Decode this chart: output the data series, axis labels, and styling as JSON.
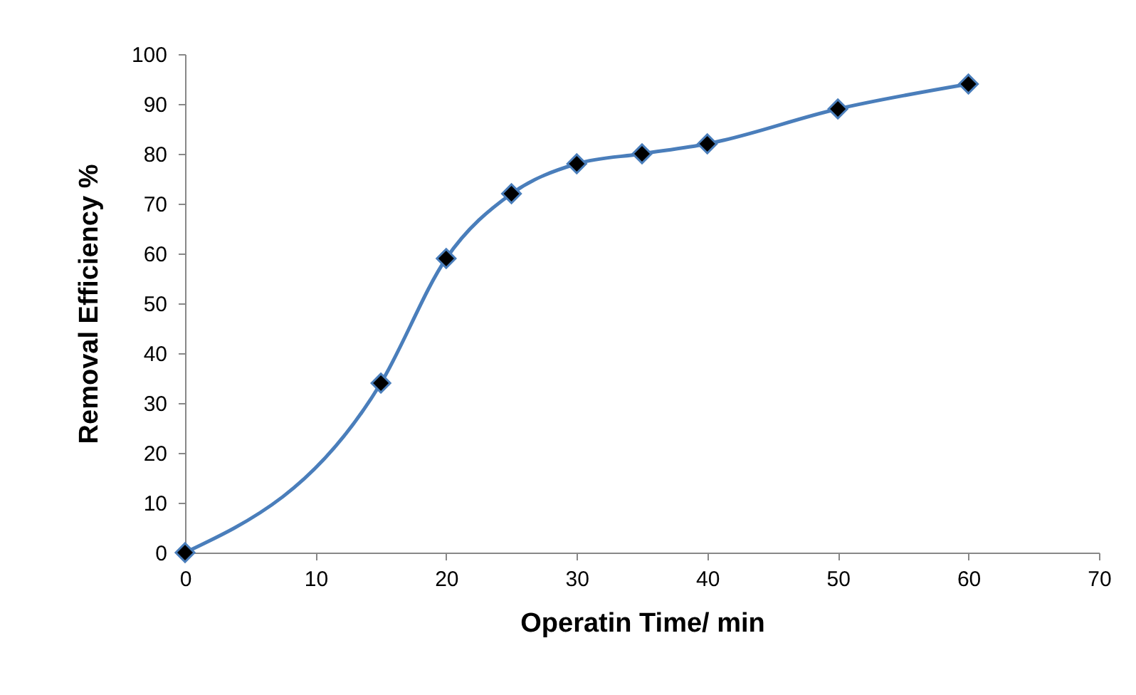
{
  "chart_data": {
    "type": "line",
    "xlabel": "Operatin Time/ min",
    "ylabel": "Removal Efficiency %",
    "x": [
      0,
      15,
      20,
      25,
      30,
      35,
      40,
      50,
      60
    ],
    "series": [
      {
        "color": "#4a7ebb",
        "values": [
          0,
          34,
          59,
          72,
          78,
          80,
          82,
          89,
          94
        ]
      }
    ],
    "xlim": [
      0,
      70
    ],
    "xticks": [
      0,
      10,
      20,
      30,
      40,
      50,
      60,
      70
    ],
    "ylim": [
      0,
      100
    ],
    "yticks": [
      0,
      10,
      20,
      30,
      40,
      50,
      60,
      70,
      80,
      90,
      100
    ],
    "grid": false,
    "marker": "diamond",
    "line_style": "solid"
  }
}
